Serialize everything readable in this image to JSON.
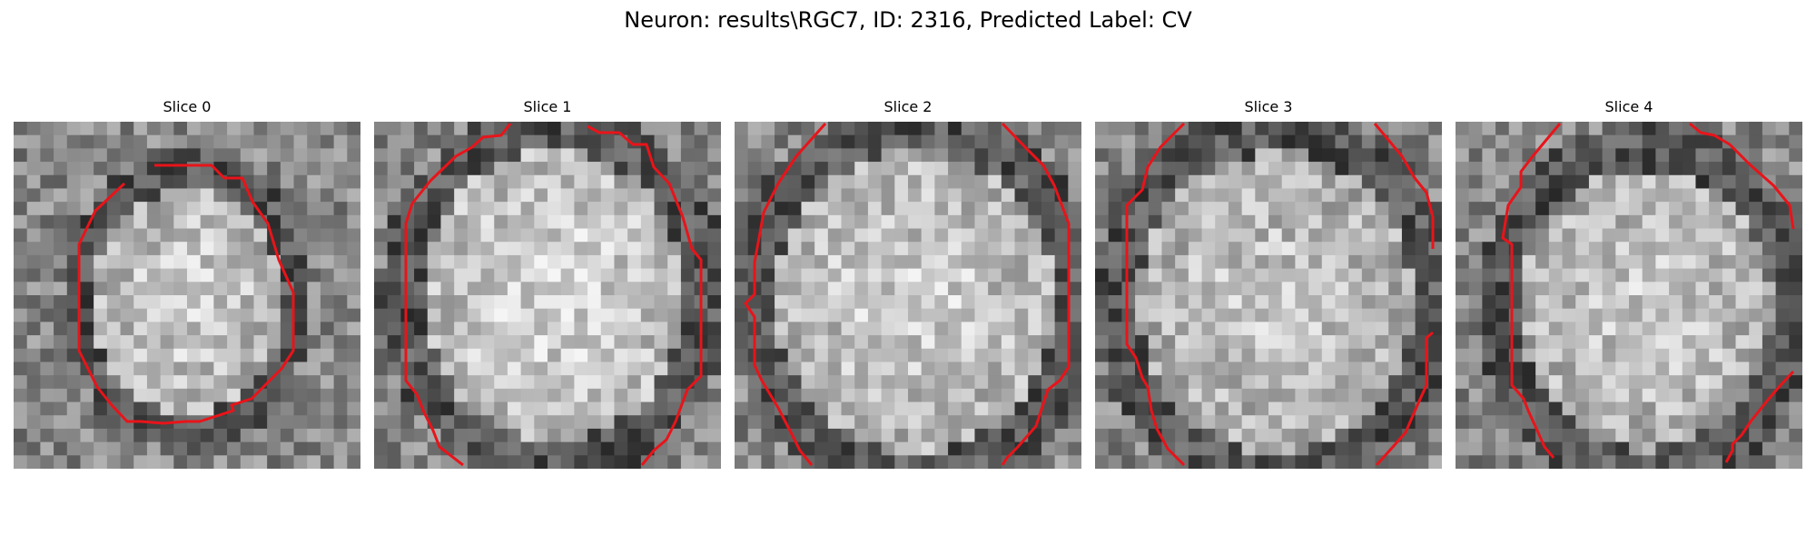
{
  "figure": {
    "title": "Neuron: results\\RGC7, ID: 2316, Predicted Label: CV"
  },
  "slices": [
    {
      "label": "Slice 0"
    },
    {
      "label": "Slice 1"
    },
    {
      "label": "Slice 2"
    },
    {
      "label": "Slice 3"
    },
    {
      "label": "Slice 4"
    }
  ],
  "style": {
    "contour_color": "#e8141a",
    "background_color": "#ffffff"
  }
}
